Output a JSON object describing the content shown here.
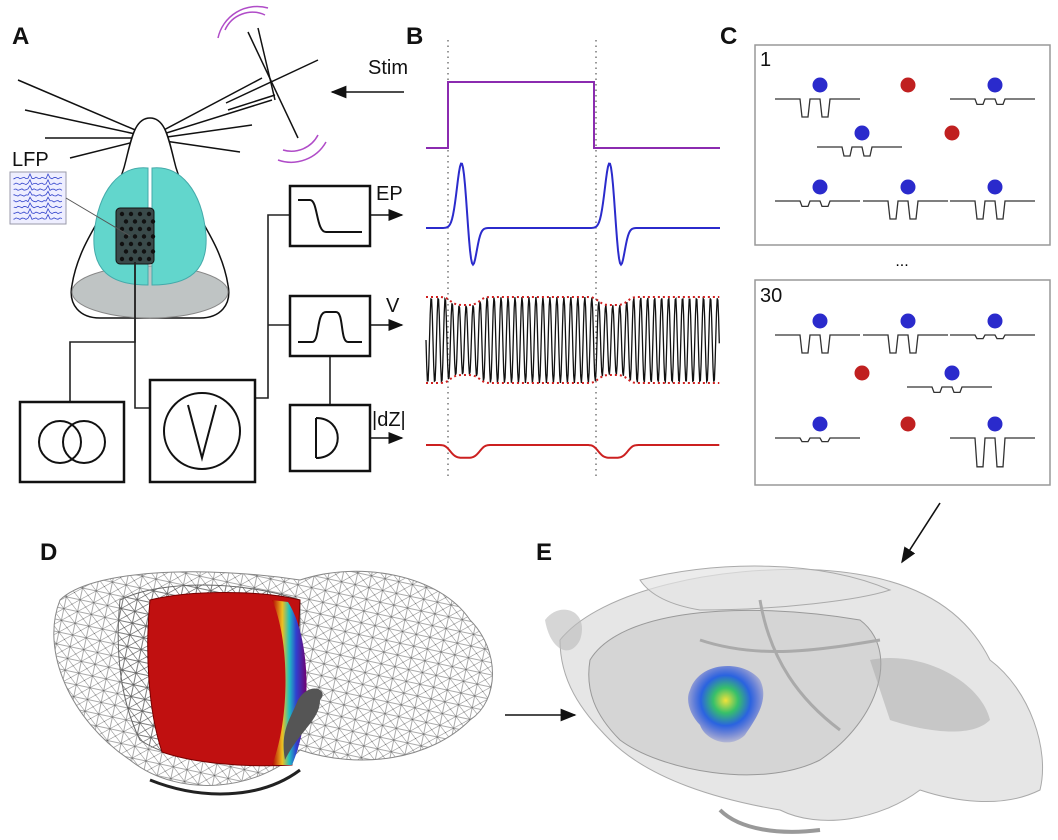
{
  "panel_labels": [
    "A",
    "B",
    "C",
    "D",
    "E"
  ],
  "panel_a": {
    "stim": "Stim",
    "lfp": "LFP"
  },
  "panel_b": {
    "outputs": [
      "EP",
      "V",
      "|dZ|"
    ]
  },
  "panel_c": {
    "trials": [
      "1",
      "30"
    ],
    "ellipsis": "..."
  }
}
